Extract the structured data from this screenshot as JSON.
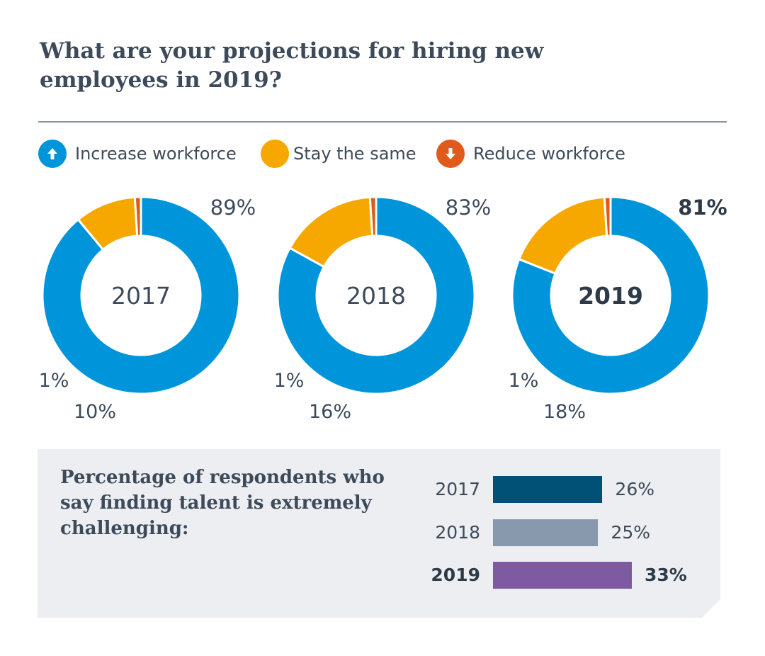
{
  "title": {
    "line1": "What are your projections for hiring new",
    "line2": "employees in 2019?"
  },
  "legend": [
    {
      "label": "Increase workforce",
      "color": "#0095da",
      "icon": "arrow-up-icon"
    },
    {
      "label": "Stay the same",
      "color": "#f6a800",
      "icon": "circle-icon"
    },
    {
      "label": "Reduce workforce",
      "color": "#e05a1b",
      "icon": "arrow-down-icon"
    }
  ],
  "colors": {
    "increase": "#0095da",
    "same": "#f6a800",
    "reduce": "#e05a1b",
    "bar_2017": "#005175",
    "bar_2018": "#8899ad",
    "bar_2019": "#7e5aa3",
    "panel_bg": "#eceef1"
  },
  "chart_data": [
    {
      "type": "pie",
      "title": "What are your projections for hiring new employees in 2019?",
      "center_label": "2017",
      "emphasis": false,
      "categories": [
        "Increase workforce",
        "Stay the same",
        "Reduce workforce"
      ],
      "values": [
        89,
        10,
        1
      ],
      "labels": [
        "89%",
        "10%",
        "1%"
      ]
    },
    {
      "type": "pie",
      "center_label": "2018",
      "emphasis": false,
      "categories": [
        "Increase workforce",
        "Stay the same",
        "Reduce workforce"
      ],
      "values": [
        83,
        16,
        1
      ],
      "labels": [
        "83%",
        "16%",
        "1%"
      ]
    },
    {
      "type": "pie",
      "center_label": "2019",
      "emphasis": true,
      "categories": [
        "Increase workforce",
        "Stay the same",
        "Reduce workforce"
      ],
      "values": [
        81,
        18,
        1
      ],
      "labels": [
        "81%",
        "18%",
        "1%"
      ]
    },
    {
      "type": "bar",
      "title": "Percentage of respondents who say finding talent is extremely challenging:",
      "categories": [
        "2017",
        "2018",
        "2019"
      ],
      "values": [
        26,
        25,
        33
      ],
      "labels": [
        "26%",
        "25%",
        "33%"
      ],
      "xlim": [
        0,
        33
      ]
    }
  ],
  "panel": {
    "line1": "Percentage of respondents who",
    "line2": "say finding talent is extremely",
    "line3": "challenging:"
  }
}
